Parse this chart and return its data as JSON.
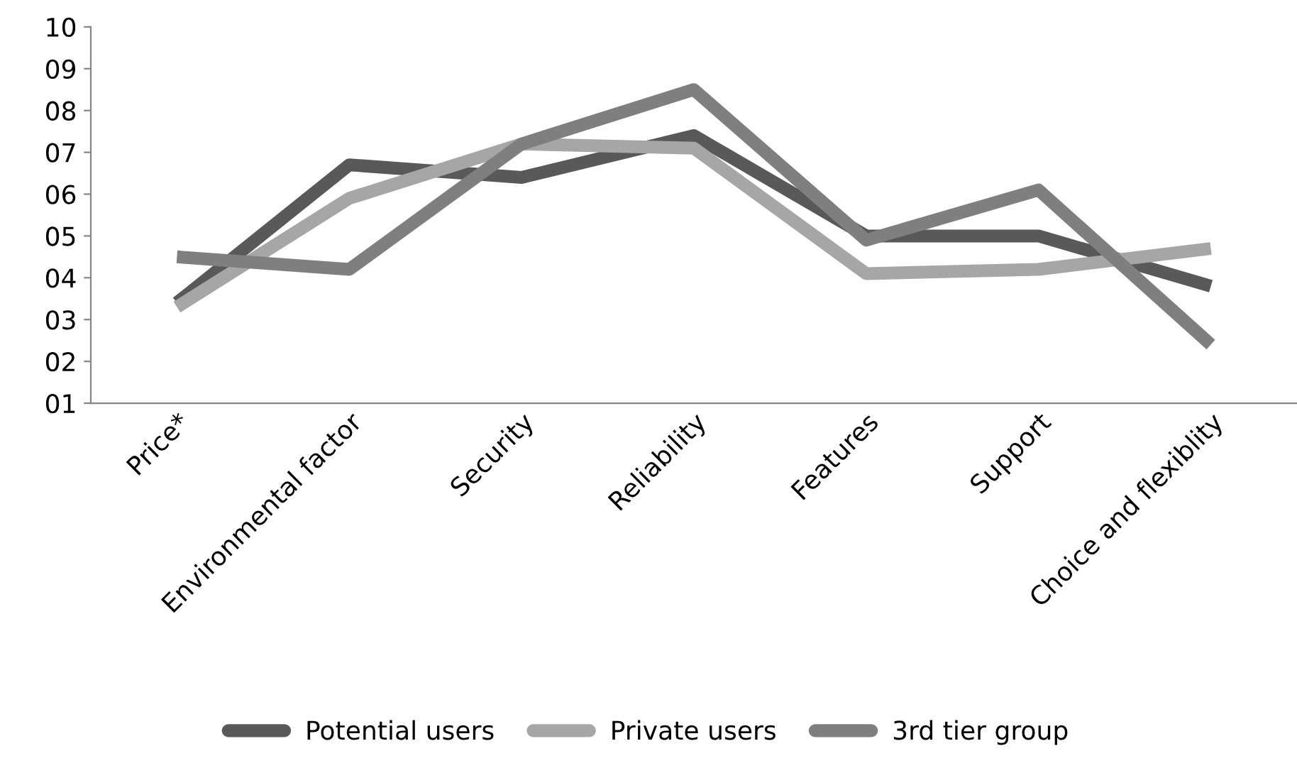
{
  "chart_data": {
    "type": "line",
    "categories": [
      "Price*",
      "Environmental factor",
      "Security",
      "Reliability",
      "Features",
      "Support",
      "Choice and flexiblity"
    ],
    "series": [
      {
        "name": "Potential users",
        "color": "#595959",
        "values": [
          3.4,
          6.7,
          6.4,
          7.4,
          5.0,
          5.0,
          3.8
        ]
      },
      {
        "name": "Private users",
        "color": "#a6a6a6",
        "values": [
          3.3,
          5.9,
          7.2,
          7.1,
          4.1,
          4.2,
          4.7
        ]
      },
      {
        "name": "3rd tier group",
        "color": "#7f7f7f",
        "values": [
          4.5,
          4.2,
          7.2,
          8.5,
          4.9,
          6.1,
          2.4
        ]
      }
    ],
    "ylim": [
      1,
      10
    ],
    "yticks": [
      {
        "value": 1,
        "label": "01"
      },
      {
        "value": 2,
        "label": "02"
      },
      {
        "value": 3,
        "label": "03"
      },
      {
        "value": 4,
        "label": "04"
      },
      {
        "value": 5,
        "label": "05"
      },
      {
        "value": 6,
        "label": "06"
      },
      {
        "value": 7,
        "label": "07"
      },
      {
        "value": 8,
        "label": "08"
      },
      {
        "value": 9,
        "label": "09"
      },
      {
        "value": 10,
        "label": "10"
      }
    ],
    "grid": false,
    "legend": "bottom",
    "marker": "none",
    "line_style": "solid"
  }
}
